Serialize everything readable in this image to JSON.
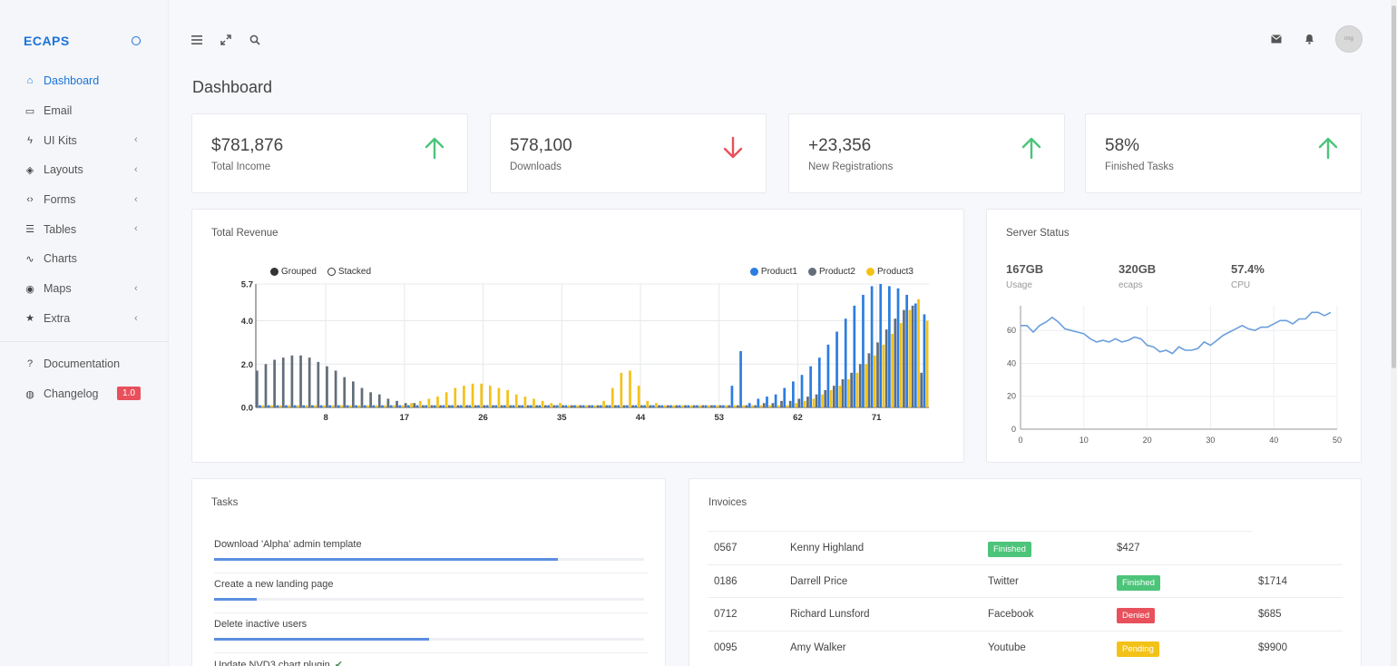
{
  "brand": "ECAPS",
  "sidebar": {
    "items": [
      {
        "label": "Dashboard",
        "icon": "home-icon",
        "glyph": "⌂",
        "active": true,
        "chevron": false
      },
      {
        "label": "Email",
        "icon": "mail-icon",
        "glyph": "▭",
        "active": false,
        "chevron": false
      },
      {
        "label": "UI Kits",
        "icon": "bolt-icon",
        "glyph": "ϟ",
        "active": false,
        "chevron": true
      },
      {
        "label": "Layouts",
        "icon": "layers-icon",
        "glyph": "◈",
        "active": false,
        "chevron": true
      },
      {
        "label": "Forms",
        "icon": "code-icon",
        "glyph": "‹›",
        "active": false,
        "chevron": true
      },
      {
        "label": "Tables",
        "icon": "list-icon",
        "glyph": "☰",
        "active": false,
        "chevron": true
      },
      {
        "label": "Charts",
        "icon": "trend-icon",
        "glyph": "∿",
        "active": false,
        "chevron": false
      },
      {
        "label": "Maps",
        "icon": "target-icon",
        "glyph": "◉",
        "active": false,
        "chevron": true
      },
      {
        "label": "Extra",
        "icon": "star-icon",
        "glyph": "★",
        "active": false,
        "chevron": true
      }
    ],
    "secondary": [
      {
        "label": "Documentation",
        "icon": "help-circle-icon",
        "glyph": "?"
      },
      {
        "label": "Changelog",
        "icon": "globe-icon",
        "glyph": "◍",
        "badge": "1.0"
      }
    ]
  },
  "topbar": {
    "avatar_text": "img"
  },
  "page_title": "Dashboard",
  "stats": [
    {
      "value": "$781,876",
      "label": "Total Income",
      "trend": "up",
      "color": "#4cc47a"
    },
    {
      "value": "578,100",
      "label": "Downloads",
      "trend": "down",
      "color": "#e8505b"
    },
    {
      "value": "+23,356",
      "label": "New Registrations",
      "trend": "up",
      "color": "#4cc47a"
    },
    {
      "value": "58%",
      "label": "Finished Tasks",
      "trend": "up",
      "color": "#4cc47a"
    }
  ],
  "revenue": {
    "title": "Total Revenue",
    "mode_options": [
      "Grouped",
      "Stacked"
    ]
  },
  "server": {
    "title": "Server Status",
    "metrics": [
      {
        "value": "167GB",
        "label": "Usage"
      },
      {
        "value": "320GB",
        "label": "ecaps"
      },
      {
        "value": "57.4%",
        "label": "CPU"
      }
    ]
  },
  "tasks": {
    "title": "Tasks",
    "items": [
      {
        "text": "Download 'Alpha' admin template",
        "progress": 0.8,
        "check": ""
      },
      {
        "text": "Create a new landing page",
        "progress": 0.1,
        "check": ""
      },
      {
        "text": "Delete inactive users",
        "progress": 0.5,
        "check": ""
      },
      {
        "text": "Update NVD3 chart plugin",
        "progress": 0,
        "check": "✔"
      }
    ]
  },
  "invoices": {
    "title": "Invoices",
    "rows": [
      {
        "id": "0567",
        "name": "Kenny Highland",
        "source": "",
        "status": "Finished",
        "status_type": "finished",
        "amount": "$427",
        "layout": "short"
      },
      {
        "id": "0186",
        "name": "Darrell Price",
        "source": "Twitter",
        "status": "Finished",
        "status_type": "finished",
        "amount": "$1714",
        "layout": "full"
      },
      {
        "id": "0712",
        "name": "Richard Lunsford",
        "source": "Facebook",
        "status": "Denied",
        "status_type": "denied",
        "amount": "$685",
        "layout": "full"
      },
      {
        "id": "0095",
        "name": "Amy Walker",
        "source": "Youtube",
        "status": "Pending",
        "status_type": "pending",
        "amount": "$9900",
        "layout": "full"
      }
    ]
  },
  "chart_data": [
    {
      "type": "bar",
      "title": "Total Revenue",
      "legend_placement": "top-right",
      "ylim": [
        0,
        5.7
      ],
      "yticks": [
        0.0,
        2.0,
        4.0,
        5.7
      ],
      "xticks": [
        8,
        17,
        26,
        35,
        44,
        53,
        62,
        71
      ],
      "x_range": [
        0,
        77
      ],
      "series": [
        {
          "name": "Product1",
          "color": "#2b7de0",
          "values": [
            0.1,
            0.1,
            0.1,
            0.1,
            0.1,
            0.1,
            0.1,
            0.1,
            0.1,
            0.1,
            0.1,
            0.1,
            0.1,
            0.1,
            0.1,
            0.1,
            0.1,
            0.1,
            0.1,
            0.1,
            0.1,
            0.1,
            0.1,
            0.1,
            0.1,
            0.1,
            0.1,
            0.1,
            0.1,
            0.1,
            0.1,
            0.1,
            0.1,
            0.1,
            0.1,
            0.1,
            0.1,
            0.1,
            0.1,
            0.1,
            0.1,
            0.1,
            0.1,
            0.1,
            0.1,
            0.1,
            0.1,
            0.1,
            0.1,
            0.1,
            0.1,
            0.1,
            0.1,
            0.1,
            1.0,
            2.6,
            0.2,
            0.4,
            0.5,
            0.6,
            0.9,
            1.2,
            1.5,
            1.9,
            2.3,
            2.9,
            3.5,
            4.1,
            4.7,
            5.2,
            5.6,
            5.7,
            5.6,
            5.5,
            5.2,
            4.8,
            4.3
          ]
        },
        {
          "name": "Product2",
          "color": "#636e7b",
          "values": [
            1.7,
            2.0,
            2.2,
            2.3,
            2.4,
            2.4,
            2.3,
            2.1,
            1.9,
            1.7,
            1.4,
            1.2,
            0.9,
            0.7,
            0.6,
            0.4,
            0.3,
            0.2,
            0.2,
            0.1,
            0.1,
            0.1,
            0.1,
            0.1,
            0.1,
            0.1,
            0.1,
            0.1,
            0.1,
            0.1,
            0.1,
            0.1,
            0.1,
            0.1,
            0.1,
            0.1,
            0.1,
            0.1,
            0.1,
            0.1,
            0.1,
            0.1,
            0.1,
            0.1,
            0.1,
            0.1,
            0.1,
            0.1,
            0.1,
            0.1,
            0.1,
            0.1,
            0.1,
            0.1,
            0.1,
            0.1,
            0.1,
            0.1,
            0.2,
            0.2,
            0.3,
            0.3,
            0.4,
            0.5,
            0.6,
            0.8,
            1.0,
            1.3,
            1.6,
            2.0,
            2.5,
            3.0,
            3.6,
            4.1,
            4.5,
            4.7,
            1.6
          ]
        },
        {
          "name": "Product3",
          "color": "#f3c218",
          "values": [
            0.1,
            0.1,
            0.1,
            0.1,
            0.1,
            0.1,
            0.1,
            0.1,
            0.1,
            0.1,
            0.1,
            0.1,
            0.1,
            0.1,
            0.1,
            0.1,
            0.1,
            0.2,
            0.3,
            0.4,
            0.5,
            0.7,
            0.9,
            1.0,
            1.1,
            1.1,
            1.0,
            0.9,
            0.8,
            0.6,
            0.5,
            0.4,
            0.3,
            0.2,
            0.2,
            0.1,
            0.1,
            0.1,
            0.1,
            0.3,
            0.9,
            1.6,
            1.7,
            1.0,
            0.3,
            0.2,
            0.1,
            0.1,
            0.1,
            0.1,
            0.1,
            0.1,
            0.1,
            0.1,
            0.1,
            0.1,
            0.1,
            0.1,
            0.1,
            0.1,
            0.1,
            0.2,
            0.3,
            0.4,
            0.6,
            0.8,
            1.0,
            1.3,
            1.6,
            2.0,
            2.4,
            2.9,
            3.4,
            3.9,
            4.5,
            5.0,
            4.0
          ]
        }
      ]
    },
    {
      "type": "line",
      "title": "Server Status",
      "xlim": [
        0,
        50
      ],
      "ylim": [
        0,
        75
      ],
      "xticks": [
        0,
        10,
        20,
        30,
        40,
        50
      ],
      "yticks": [
        0,
        20,
        40,
        60
      ],
      "series": [
        {
          "name": "",
          "color": "#6a9edc",
          "x": [
            0,
            1,
            2,
            3,
            4,
            5,
            6,
            7,
            8,
            9,
            10,
            11,
            12,
            13,
            14,
            15,
            16,
            17,
            18,
            19,
            20,
            21,
            22,
            23,
            24,
            25,
            26,
            27,
            28,
            29,
            30,
            31,
            32,
            33,
            34,
            35,
            36,
            37,
            38,
            39,
            40,
            41,
            42,
            43,
            44,
            45,
            46,
            47,
            48,
            49
          ],
          "y": [
            63,
            63,
            59,
            63,
            65,
            68,
            65,
            61,
            60,
            59,
            58,
            55,
            53,
            54,
            53,
            55,
            53,
            54,
            56,
            55,
            51,
            50,
            47,
            48,
            46,
            50,
            48,
            48,
            49,
            53,
            51,
            54,
            57,
            59,
            61,
            63,
            61,
            60,
            62,
            62,
            64,
            66,
            66,
            64,
            67,
            67,
            71,
            71,
            69,
            71
          ]
        }
      ]
    }
  ]
}
